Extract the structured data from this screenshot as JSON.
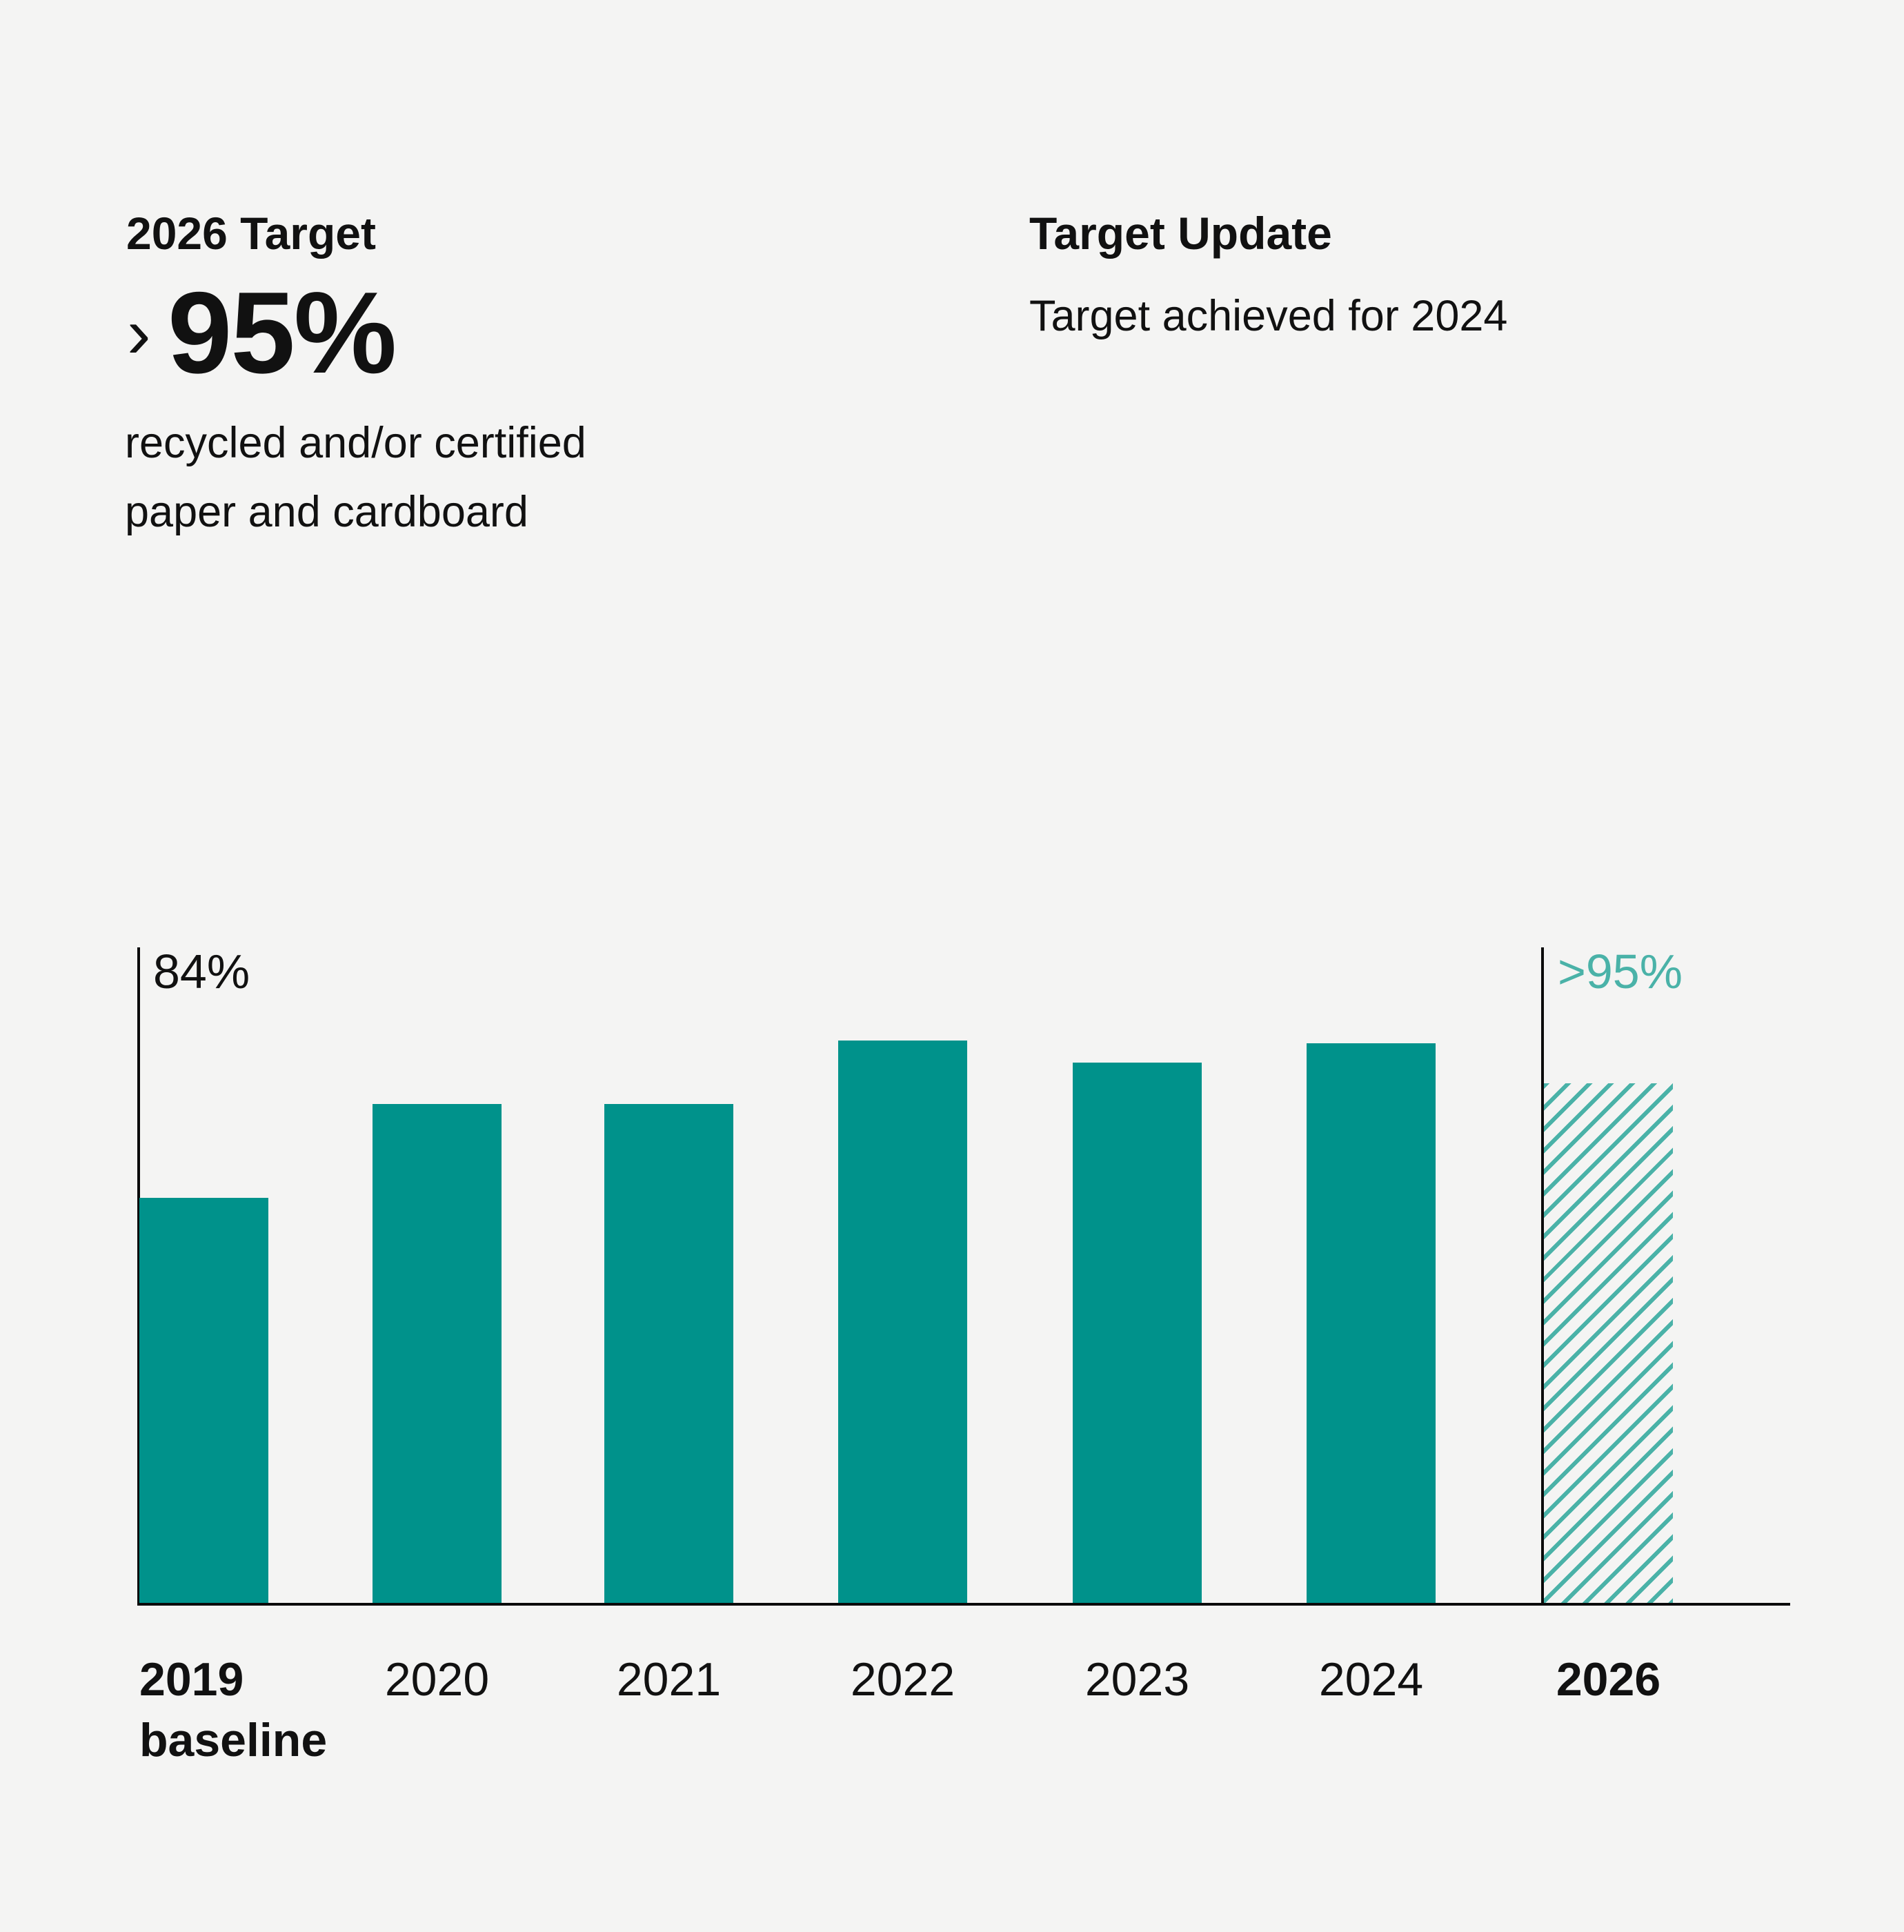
{
  "page": {
    "background": "#f4f4f3"
  },
  "summary": {
    "left": {
      "title": "2026 Target",
      "value_prefix": "›",
      "value": "95%",
      "description_lines": [
        "recycled and/or certified",
        "paper and cardboard"
      ]
    },
    "right": {
      "title": "Target Update",
      "status": "Target achieved for 2024"
    }
  },
  "chart_data": {
    "type": "bar",
    "title": "",
    "categories": [
      "2019",
      "2020",
      "2021",
      "2022",
      "2023",
      "2024",
      "2026"
    ],
    "category_sublabels": [
      "baseline",
      "",
      "",
      "",
      "",
      "",
      ""
    ],
    "emphasized_categories": [
      "2019",
      "2026"
    ],
    "values_relative_pct": [
      61.8,
      76.1,
      76.1,
      85.8,
      82.4,
      85.4,
      79.3
    ],
    "bar_styles": [
      "solid",
      "solid",
      "solid",
      "solid",
      "solid",
      "solid",
      "hatched"
    ],
    "ylabel_top": "84%",
    "target_label": ">95%",
    "axis_note": "single y-axis tick label 84% at axis top; hatched 2026 bar marks target >95%",
    "legend": "none",
    "grid": "off",
    "colors": {
      "bar_solid": "#00928B",
      "bar_hatch": "#4AB2A8",
      "target_text": "#4AB2A8",
      "axis": "#0B0B0B",
      "background": "#f4f4f3",
      "text": "#111111"
    }
  }
}
